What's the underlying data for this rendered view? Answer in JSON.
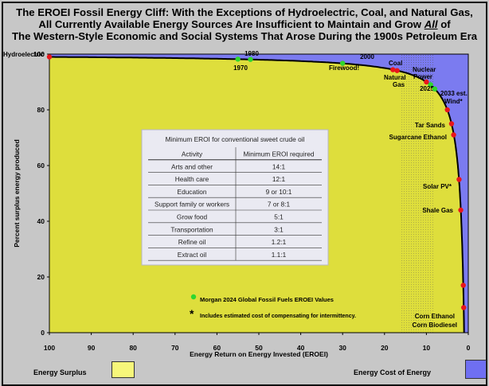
{
  "title_lines": [
    "The EROEI Fossil Energy Cliff:  With the Exceptions of Hydroelectric, Coal, and Natural Gas,",
    "All Currently Available Energy Sources Are Insufficient to Maintain and Grow",
    "All",
    "of",
    "The Western-Style Economic and Social Systems That Arose During the 1900s Petroleum Era"
  ],
  "chart_data": {
    "type": "line",
    "xlabel": "Energy Return on Energy Invested (EROEI)",
    "ylabel": "Percent surplus energy produced",
    "xlim": [
      100,
      0
    ],
    "ylim": [
      0,
      100
    ],
    "x_ticks": [
      100,
      90,
      80,
      70,
      60,
      50,
      40,
      30,
      20,
      10,
      0
    ],
    "y_ticks": [
      0,
      20,
      40,
      60,
      80,
      100
    ],
    "curve": "y = 100 * (1 - 1/EROEI)",
    "red_points": [
      {
        "label": "Hydroelectric",
        "x": 100,
        "y": 99
      },
      {
        "label": "Firewood!",
        "x": 30,
        "y": 96.7
      },
      {
        "label": "Coal",
        "x": 18,
        "y": 94.4
      },
      {
        "label": "Natural Gas",
        "x": 17,
        "y": 94.1
      },
      {
        "label": "Nuclear Power",
        "x": 10,
        "y": 90
      },
      {
        "label": "Wind*",
        "x": 5,
        "y": 80
      },
      {
        "label": "Tar Sands",
        "x": 4,
        "y": 75
      },
      {
        "label": "Sugarcane Ethanol",
        "x": 3.5,
        "y": 71
      },
      {
        "label": "Solar PV*",
        "x": 2.2,
        "y": 55
      },
      {
        "label": "Shale Gas",
        "x": 1.8,
        "y": 44
      },
      {
        "label": "Corn Ethanol",
        "x": 1.2,
        "y": 17
      },
      {
        "label": "Corn Biodiesel",
        "x": 1.1,
        "y": 9
      }
    ],
    "green_points": [
      {
        "label": "1970",
        "x": 55,
        "y": 98.2
      },
      {
        "label": "1980",
        "x": 52,
        "y": 98.1
      },
      {
        "label": "2000",
        "x": 30,
        "y": 96.7
      },
      {
        "label": "2025",
        "x": 9,
        "y": 89
      },
      {
        "label": "2033 est.",
        "x": 8,
        "y": 87.5
      }
    ],
    "annotations": {
      "green_legend": "Morgan 2024 Global Fossil Fuels EROEI Values",
      "asterisk": "*",
      "asterisk_note": "Includes estimated cost of compensating for intermittency."
    },
    "inset_table": {
      "title": "Minimum EROI for conventional sweet crude oil",
      "headers": [
        "Activity",
        "Minimum EROI required"
      ],
      "rows": [
        [
          "Arts and other",
          "14:1"
        ],
        [
          "Health care",
          "12:1"
        ],
        [
          "Education",
          "9 or 10:1"
        ],
        [
          "Support family or workers",
          "7 or 8:1"
        ],
        [
          "Grow food",
          "5:1"
        ],
        [
          "Transportation",
          "3:1"
        ],
        [
          "Refine oil",
          "1.2:1"
        ],
        [
          "Extract oil",
          "1.1:1"
        ]
      ]
    },
    "legend": [
      {
        "label": "Energy Surplus",
        "color": "#f7f77a"
      },
      {
        "label": "Energy Cost of Energy",
        "color": "#6f6ff2"
      }
    ],
    "colors": {
      "surplus_area": "#dede3c",
      "cost_area": "#7b7bf0",
      "curve": "#000000",
      "red_point": "#e8161b",
      "green_point": "#2fd72f"
    }
  }
}
